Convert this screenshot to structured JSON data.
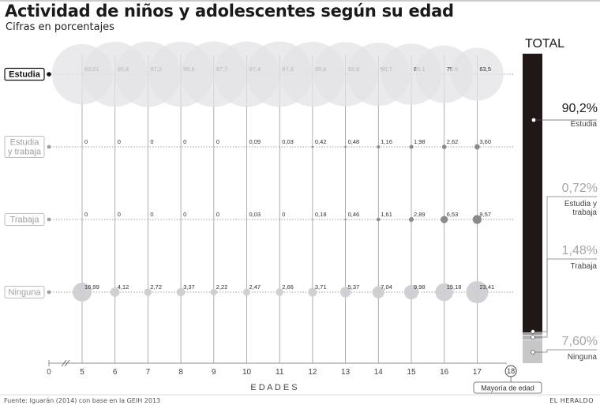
{
  "title": "Actividad de niños y adolescentes según su edad",
  "subtitle": "Cifras en porcentajes",
  "source": "Fuente: Iguarán (2014) con base en la GEIH 2013",
  "brand": "EL HERALDO",
  "chart_data": {
    "type": "bubble-matrix",
    "xlabel": "E D A D E S",
    "x_zero_label": "0",
    "ages": [
      "5",
      "6",
      "7",
      "8",
      "9",
      "10",
      "11",
      "12",
      "13",
      "14",
      "15",
      "16",
      "17"
    ],
    "age_18": {
      "label": "18",
      "note": "Mayoría de edad"
    },
    "series": [
      {
        "name": "Estudia",
        "lines": [
          "Estudia"
        ],
        "highlight": true,
        "values": [
          83.01,
          95.8,
          97.2,
          96.6,
          97.7,
          97.4,
          97.3,
          95.6,
          93.8,
          90.7,
          85.1,
          75.6,
          63.5
        ],
        "labels": [
          "83,01",
          "95,8",
          "97,2",
          "96,6",
          "97,7",
          "97,4",
          "97,3",
          "95,6",
          "93,8",
          "90,7",
          "85,1",
          "75,6",
          "63,5"
        ]
      },
      {
        "name": "Estudia y trabaja",
        "lines": [
          "Estudia",
          "y trabaja"
        ],
        "highlight": false,
        "values": [
          0,
          0,
          0,
          0,
          0,
          0.09,
          0.03,
          0.42,
          0.48,
          1.16,
          1.98,
          2.62,
          3.6
        ],
        "labels": [
          "0",
          "0",
          "0",
          "0",
          "0",
          "0,09",
          "0,03",
          "0,42",
          "0,48",
          "1,16",
          "1,98",
          "2,62",
          "3,60"
        ]
      },
      {
        "name": "Trabaja",
        "lines": [
          "Trabaja"
        ],
        "highlight": false,
        "values": [
          0,
          0,
          0,
          0,
          0,
          0.03,
          0,
          0.18,
          0.46,
          1.61,
          2.89,
          6.53,
          9.57
        ],
        "labels": [
          "0",
          "0",
          "0",
          "0",
          "0",
          "0,03",
          "0",
          "0,18",
          "0,46",
          "1,61",
          "2,89",
          "6,53",
          "9,57"
        ]
      },
      {
        "name": "Ninguna",
        "lines": [
          "Ninguna"
        ],
        "highlight": false,
        "values": [
          16.99,
          4.12,
          2.72,
          3.37,
          2.22,
          2.47,
          2.66,
          3.71,
          5.37,
          7.04,
          9.98,
          15.18,
          23.41
        ],
        "labels": [
          "16,99",
          "4,12",
          "2,72",
          "3,37",
          "2,22",
          "2,47",
          "2,66",
          "3,71",
          "5,37",
          "7,04",
          "9,98",
          "15,18",
          "23,41"
        ]
      }
    ],
    "total": {
      "title": "TOTAL",
      "values": [
        90.2,
        0.72,
        1.48,
        7.6
      ],
      "items": [
        {
          "value": "90,2%",
          "label_lines": [
            "Estudia"
          ]
        },
        {
          "value": "0,72%",
          "label_lines": [
            "Estudia y",
            "trabaja"
          ]
        },
        {
          "value": "1,48%",
          "label_lines": [
            "Trabaja"
          ]
        },
        {
          "value": "7,60%",
          "label_lines": [
            "Ninguna"
          ]
        }
      ]
    },
    "colors": {
      "bubble_main": "#e3e3e6",
      "bubble_small": "#8a8a8a",
      "ninguna_bubble": "#cfcfd3",
      "total_dark": "#1f1816",
      "total_light": "#c7c7c7",
      "guide": "#9a9a9a",
      "text_grey": "#a6a6a6"
    }
  }
}
